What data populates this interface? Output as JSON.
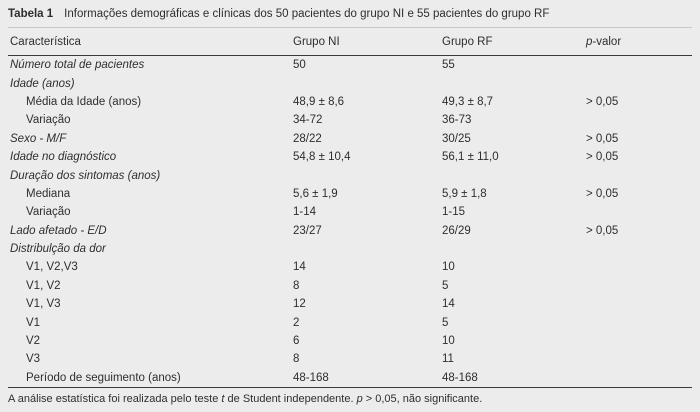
{
  "caption": {
    "label": "Tabela 1",
    "text": "Informações demográficas e clínicas dos 50 pacientes do grupo NI e 55 pacientes do grupo RF"
  },
  "header": {
    "characteristic": "Característica",
    "group_ni": "Grupo NI",
    "group_rf": "Grupo RF",
    "p_value_italic": "p",
    "p_value_rest": "-valor"
  },
  "table": {
    "rows": [
      {
        "label": "Número total de pacientes",
        "italic": true,
        "indent": false,
        "ni": "50",
        "rf": "55",
        "p": ""
      },
      {
        "label": "Idade (anos)",
        "italic": true,
        "indent": false,
        "ni": "",
        "rf": "",
        "p": ""
      },
      {
        "label": "Média da Idade (anos)",
        "italic": false,
        "indent": true,
        "ni": "48,9 ± 8,6",
        "rf": "49,3 ± 8,7",
        "p": "> 0,05"
      },
      {
        "label": "Variação",
        "italic": false,
        "indent": true,
        "ni": "34-72",
        "rf": "36-73",
        "p": ""
      },
      {
        "label": "Sexo - M/F",
        "italic": true,
        "indent": false,
        "ni": "28/22",
        "rf": "30/25",
        "p": "> 0,05"
      },
      {
        "label": "Idade no diagnóstico",
        "italic": true,
        "indent": false,
        "ni": "54,8 ± 10,4",
        "rf": "56,1 ± 11,0",
        "p": "> 0,05"
      },
      {
        "label": "Duração dos sintomas (anos)",
        "italic": true,
        "indent": false,
        "ni": "",
        "rf": "",
        "p": ""
      },
      {
        "label": "Mediana",
        "italic": false,
        "indent": true,
        "ni": "5,6 ± 1,9",
        "rf": "5,9 ± 1,8",
        "p": "> 0,05"
      },
      {
        "label": "Variação",
        "italic": false,
        "indent": true,
        "ni": "1-14",
        "rf": "1-15",
        "p": ""
      },
      {
        "label": "Lado afetado - E/D",
        "italic": true,
        "indent": false,
        "ni": "23/27",
        "rf": "26/29",
        "p": "> 0,05"
      },
      {
        "label": "Distribulção da dor",
        "italic": true,
        "indent": false,
        "ni": "",
        "rf": "",
        "p": ""
      },
      {
        "label": "V1, V2,V3",
        "italic": false,
        "indent": true,
        "ni": "14",
        "rf": "10",
        "p": ""
      },
      {
        "label": "V1, V2",
        "italic": false,
        "indent": true,
        "ni": "8",
        "rf": "5",
        "p": ""
      },
      {
        "label": "V1, V3",
        "italic": false,
        "indent": true,
        "ni": "12",
        "rf": "14",
        "p": ""
      },
      {
        "label": "V1",
        "italic": false,
        "indent": true,
        "ni": "2",
        "rf": "5",
        "p": ""
      },
      {
        "label": "V2",
        "italic": false,
        "indent": true,
        "ni": "6",
        "rf": "10",
        "p": ""
      },
      {
        "label": "V3",
        "italic": false,
        "indent": true,
        "ni": "8",
        "rf": "11",
        "p": ""
      },
      {
        "label": "Período de seguimento (anos)",
        "italic": false,
        "indent": true,
        "ni": "48-168",
        "rf": "48-168",
        "p": ""
      }
    ]
  },
  "footnote": {
    "parts": [
      {
        "text": "A análise estatística foi realizada pelo teste ",
        "italic": false
      },
      {
        "text": "t",
        "italic": true
      },
      {
        "text": " de Student independente. ",
        "italic": false
      },
      {
        "text": "p",
        "italic": true
      },
      {
        "text": " > 0,05, não significante.",
        "italic": false
      }
    ]
  },
  "colors": {
    "background": "#ececec",
    "text": "#2e2e2e",
    "rule_dark": "#3a3a3a",
    "rule_light": "#c8c8c8"
  }
}
